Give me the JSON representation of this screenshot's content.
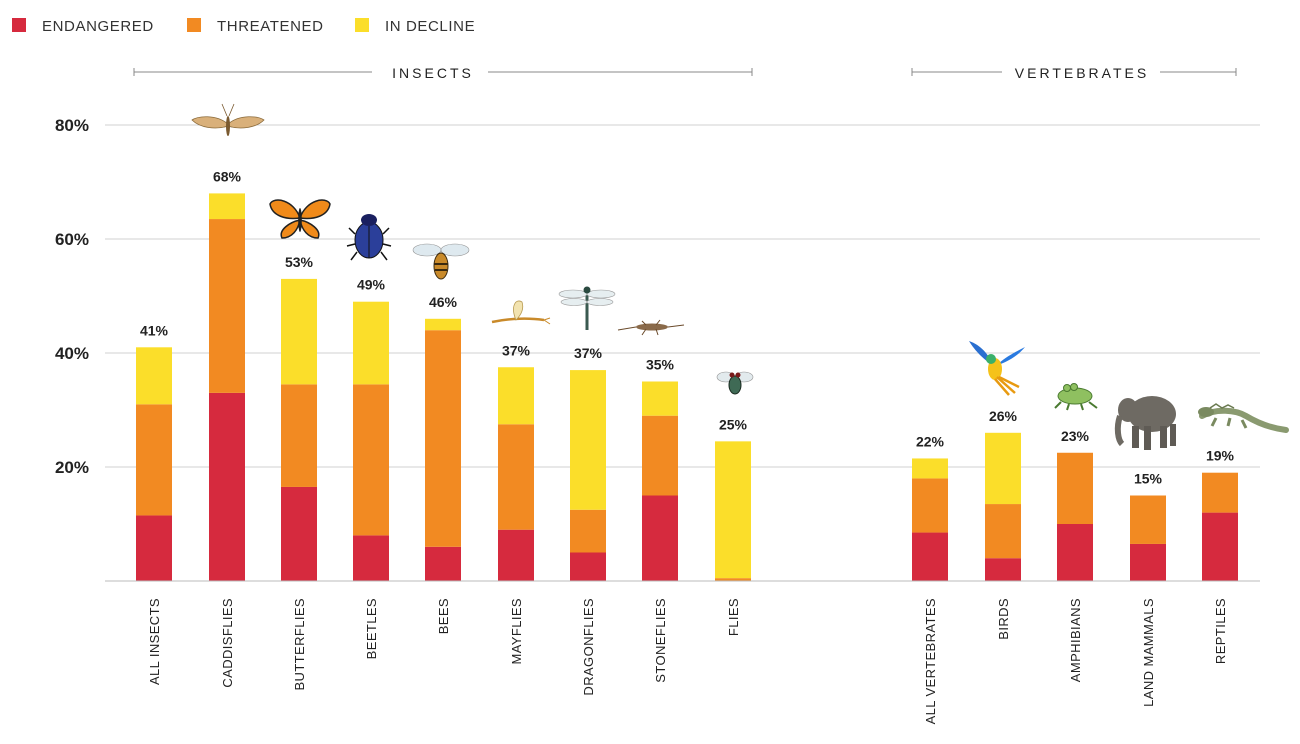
{
  "legend": {
    "items": [
      {
        "label": "ENDANGERED",
        "color": "#d62a3e"
      },
      {
        "label": "THREATENED",
        "color": "#f28a22"
      },
      {
        "label": "IN DECLINE",
        "color": "#fbde2a"
      }
    ]
  },
  "groups": {
    "insects": "INSECTS",
    "vertebrates": "VERTEBRATES"
  },
  "chart_data": {
    "type": "bar",
    "stacked": true,
    "ylim": [
      0,
      80
    ],
    "yticks": [
      "20%",
      "40%",
      "60%",
      "80%"
    ],
    "ytick_values": [
      20,
      40,
      60,
      80
    ],
    "grid": true,
    "legend_position": "top-left",
    "categories": [
      "ALL INSECTS",
      "CADDISFLIES",
      "BUTTERFLIES",
      "BEETLES",
      "BEES",
      "MAYFLIES",
      "DRAGONFLIES",
      "STONEFLIES",
      "FLIES",
      "ALL VERTEBRATES",
      "BIRDS",
      "AMPHIBIANS",
      "LAND MAMMALS",
      "REPTILES"
    ],
    "category_groups": [
      "INSECTS",
      "INSECTS",
      "INSECTS",
      "INSECTS",
      "INSECTS",
      "INSECTS",
      "INSECTS",
      "INSECTS",
      "INSECTS",
      "VERTEBRATES",
      "VERTEBRATES",
      "VERTEBRATES",
      "VERTEBRATES",
      "VERTEBRATES"
    ],
    "series": [
      {
        "name": "ENDANGERED",
        "color": "#d62a3e",
        "values": [
          11.5,
          33,
          16.5,
          8,
          6,
          9,
          5,
          15,
          0,
          8.5,
          4,
          10,
          6.5,
          12
        ]
      },
      {
        "name": "THREATENED",
        "color": "#f28a22",
        "values": [
          19.5,
          30.5,
          18,
          26.5,
          38,
          18.5,
          7.5,
          14,
          0.5,
          9.5,
          9.5,
          12.5,
          8.5,
          7
        ]
      },
      {
        "name": "IN DECLINE",
        "color": "#fbde2a",
        "values": [
          10,
          4.5,
          18.5,
          14.5,
          2,
          10,
          24.5,
          6,
          24,
          3.5,
          12.5,
          0,
          0,
          0
        ]
      }
    ],
    "totals": [
      "41%",
      "68%",
      "53%",
      "49%",
      "46%",
      "37%",
      "37%",
      "35%",
      "25%",
      "22%",
      "26%",
      "23%",
      "15%",
      "19%"
    ],
    "icons": [
      "",
      "moth-icon",
      "butterfly-icon",
      "beetle-icon",
      "bee-icon",
      "mayfly-icon",
      "dragonfly-icon",
      "stonefly-icon",
      "fly-icon",
      "",
      "parrot-icon",
      "frog-icon",
      "elephant-icon",
      "iguana-icon"
    ]
  }
}
